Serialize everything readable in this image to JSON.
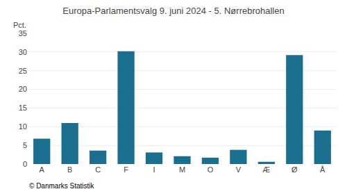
{
  "chart_data": {
    "type": "bar",
    "title": "Europa-Parlamentsvalg 9. juni 2024 - 5. Nørrebrohallen",
    "categories": [
      "A",
      "B",
      "C",
      "F",
      "I",
      "M",
      "O",
      "V",
      "Æ",
      "Ø",
      "Å"
    ],
    "values": [
      6.8,
      11.0,
      3.6,
      30.2,
      3.1,
      2.1,
      1.7,
      3.8,
      0.6,
      29.2,
      9.0
    ],
    "color": "#1a6e8e",
    "ylabel": "Pct.",
    "ylim": [
      0,
      35
    ],
    "yticks": [
      0,
      5,
      10,
      15,
      20,
      25,
      30,
      35
    ],
    "grid": true,
    "annotations": [
      "© Danmarks Statistik"
    ]
  }
}
